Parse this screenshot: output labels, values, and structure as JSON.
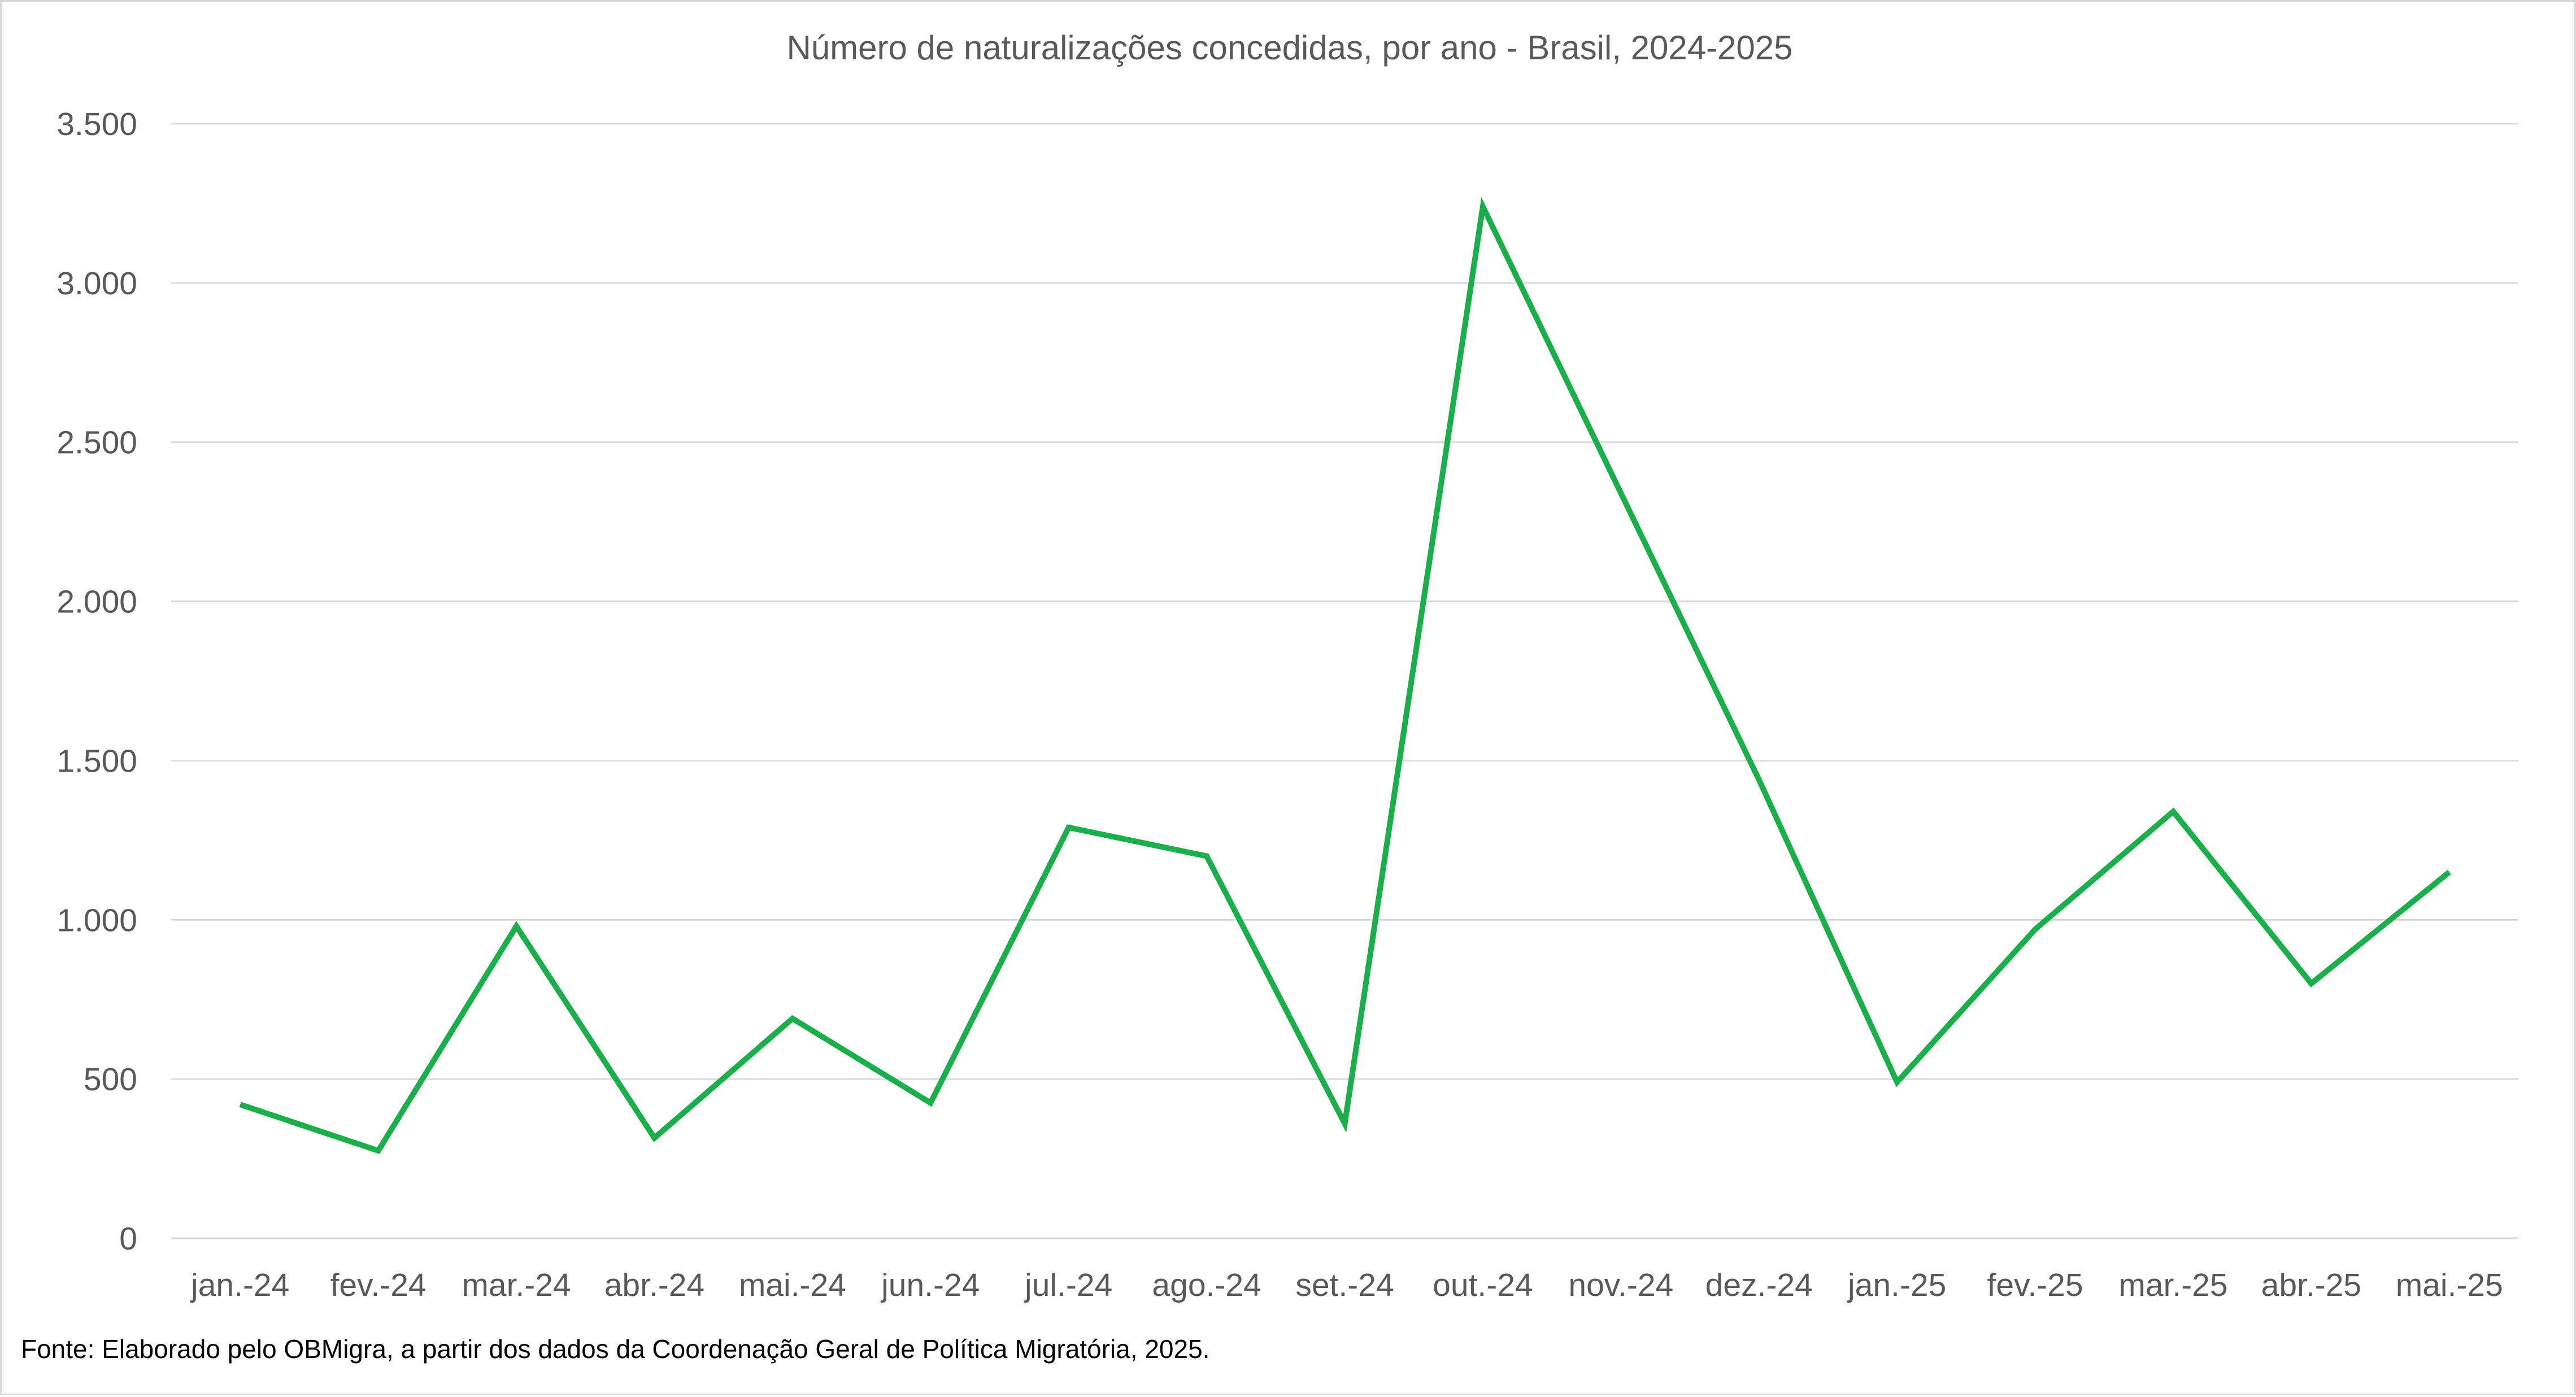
{
  "chart_data": {
    "type": "line",
    "title": "Número de naturalizações concedidas, por ano - Brasil, 2024-2025",
    "xlabel": "",
    "ylabel": "",
    "categories": [
      "jan.-24",
      "fev.-24",
      "mar.-24",
      "abr.-24",
      "mai.-24",
      "jun.-24",
      "jul.-24",
      "ago.-24",
      "set.-24",
      "out.-24",
      "nov.-24",
      "dez.-24",
      "jan.-25",
      "fev.-25",
      "mar.-25",
      "abr.-25",
      "mai.-25"
    ],
    "series": [
      {
        "name": "Naturalizações concedidas",
        "values": [
          420,
          275,
          980,
          315,
          690,
          425,
          1290,
          1200,
          360,
          3240,
          2340,
          1440,
          490,
          970,
          1340,
          800,
          1150
        ]
      }
    ],
    "ylim": [
      0,
      3500
    ],
    "yticks": [
      0,
      500,
      1000,
      1500,
      2000,
      2500,
      3000,
      3500
    ],
    "ytick_labels": [
      "0",
      "500",
      "1.000",
      "1.500",
      "2.000",
      "2.500",
      "3.000",
      "3.500"
    ],
    "grid": true,
    "legend": "none"
  },
  "colors": {
    "series": "#1aaf4b",
    "grid": "#d9d9d9",
    "text": "#595959"
  },
  "source_note": "Fonte: Elaborado pelo OBMigra, a partir dos dados da Coordenação Geral de Política Migratória, 2025."
}
